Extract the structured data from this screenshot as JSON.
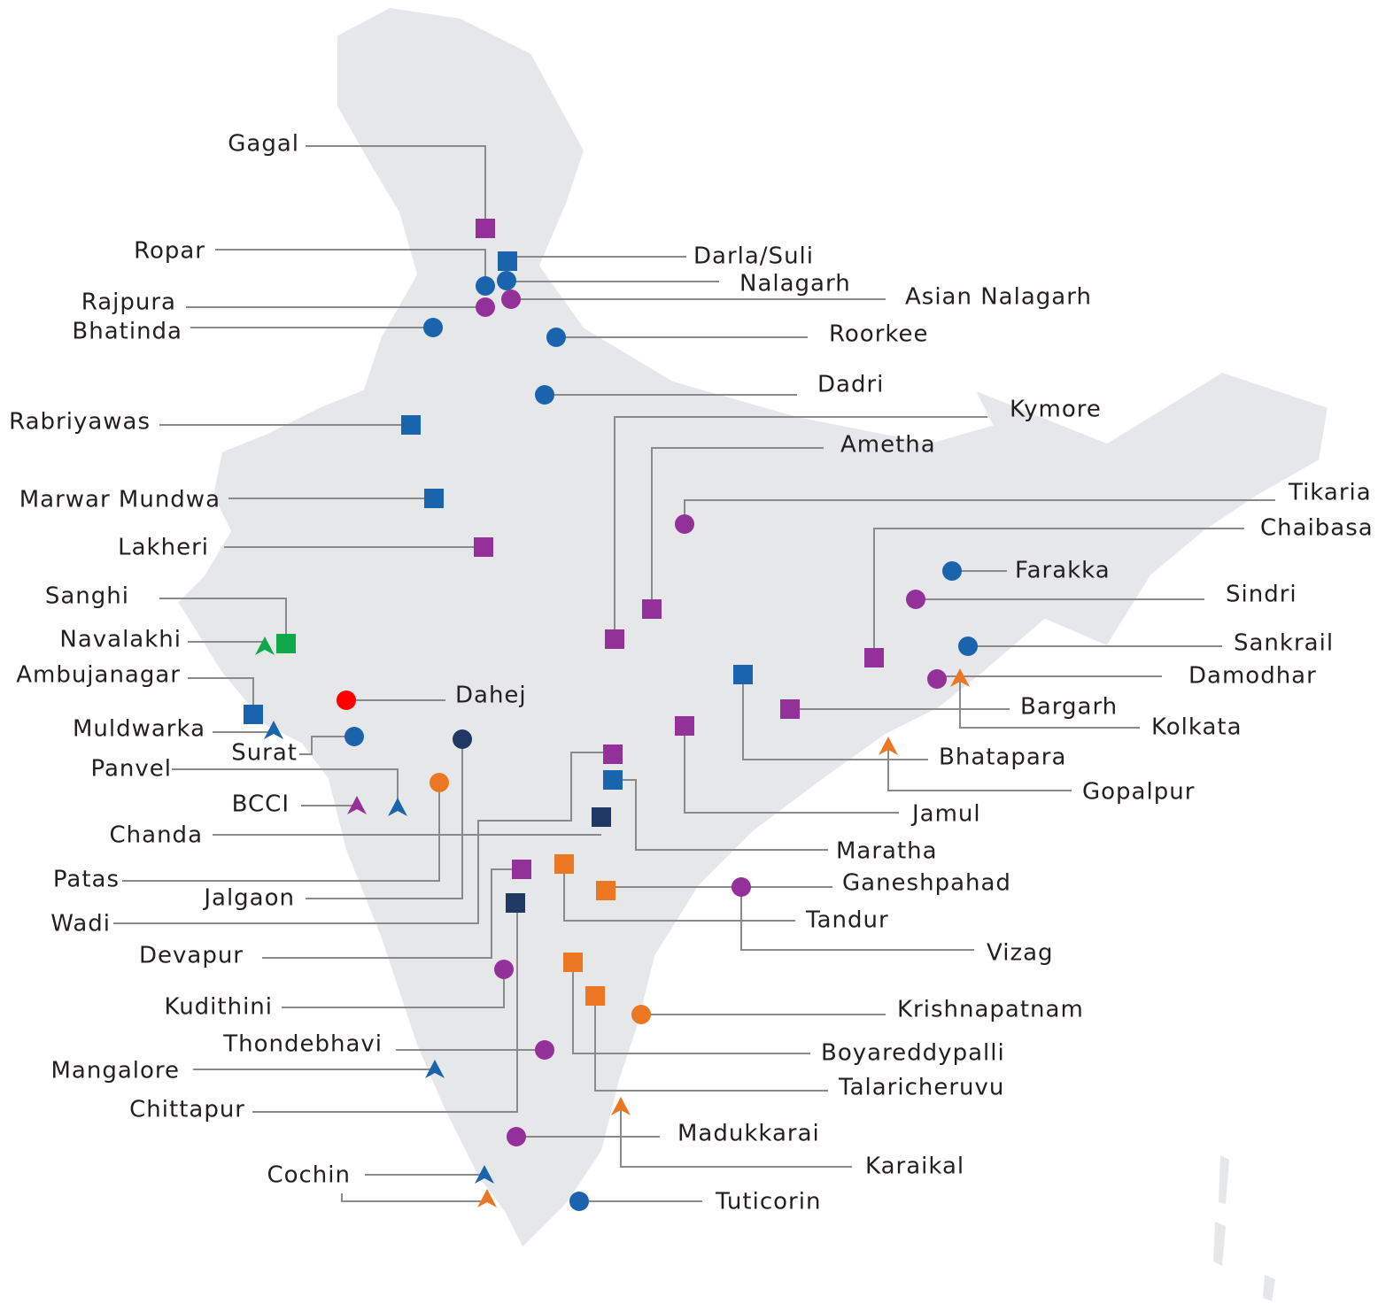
{
  "locations": [
    {
      "label": "Gagal"
    },
    {
      "label": "Ropar"
    },
    {
      "label": "Darla/Suli"
    },
    {
      "label": "Nalagarh"
    },
    {
      "label": "Asian Nalagarh"
    },
    {
      "label": "Rajpura"
    },
    {
      "label": "Bhatinda"
    },
    {
      "label": "Roorkee"
    },
    {
      "label": "Dadri"
    },
    {
      "label": "Rabriyawas"
    },
    {
      "label": "Kymore"
    },
    {
      "label": "Ametha"
    },
    {
      "label": "Marwar Mundwa"
    },
    {
      "label": "Tikaria"
    },
    {
      "label": "Chaibasa"
    },
    {
      "label": "Lakheri"
    },
    {
      "label": "Farakka"
    },
    {
      "label": "Sanghi"
    },
    {
      "label": "Sindri"
    },
    {
      "label": "Navalakhi"
    },
    {
      "label": "Sankrail"
    },
    {
      "label": "Ambujanagar"
    },
    {
      "label": "Damodhar"
    },
    {
      "label": "Dahej"
    },
    {
      "label": "Bargarh"
    },
    {
      "label": "Kolkata"
    },
    {
      "label": "Muldwarka"
    },
    {
      "label": "Surat"
    },
    {
      "label": "Bhatapara"
    },
    {
      "label": "Panvel"
    },
    {
      "label": "Gopalpur"
    },
    {
      "label": "BCCI"
    },
    {
      "label": "Jamul"
    },
    {
      "label": "Chanda"
    },
    {
      "label": "Maratha"
    },
    {
      "label": "Patas"
    },
    {
      "label": "Ganeshpahad"
    },
    {
      "label": "Jalgaon"
    },
    {
      "label": "Tandur"
    },
    {
      "label": "Wadi"
    },
    {
      "label": "Devapur"
    },
    {
      "label": "Vizag"
    },
    {
      "label": "Kudithini"
    },
    {
      "label": "Krishnapatnam"
    },
    {
      "label": "Thondebhavi"
    },
    {
      "label": "Boyareddypalli"
    },
    {
      "label": "Mangalore"
    },
    {
      "label": "Talaricheruvu"
    },
    {
      "label": "Chittapur"
    },
    {
      "label": "Madukkarai"
    },
    {
      "label": "Karaikal"
    },
    {
      "label": "Cochin"
    },
    {
      "label": "Tuticorin"
    }
  ]
}
